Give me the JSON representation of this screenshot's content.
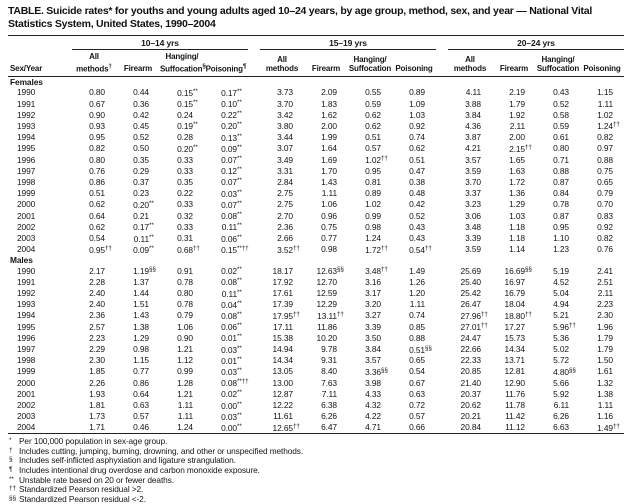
{
  "title": "TABLE. Suicide rates* for youths and young adults aged 10–24 years, by age group, method, sex, and year — National Vital Statistics System, United States, 1990–2004",
  "table": {
    "row_header": "Sex/Year",
    "groups": [
      {
        "label": "10–14 yrs",
        "columns": [
          "All\nmethods†",
          "Firearm",
          "Hanging/\nSuffocation§",
          "Poisoning¶"
        ]
      },
      {
        "label": "15–19 yrs",
        "columns": [
          "All\nmethods",
          "Firearm",
          "Hanging/\nSuffocation",
          "Poisoning"
        ]
      },
      {
        "label": "20–24 yrs",
        "columns": [
          "All\nmethods",
          "Firearm",
          "Hanging/\nSuffocation",
          "Poisoning"
        ]
      }
    ],
    "sections": [
      {
        "label": "Females",
        "rows": [
          {
            "year": "1990",
            "values": [
              "0.80",
              "0.44",
              "0.15**",
              "0.17**",
              "3.73",
              "2.09",
              "0.55",
              "0.89",
              "4.11",
              "2.19",
              "0.43",
              "1.15"
            ]
          },
          {
            "year": "1991",
            "values": [
              "0.67",
              "0.36",
              "0.15**",
              "0.10**",
              "3.70",
              "1.83",
              "0.59",
              "1.09",
              "3.88",
              "1.79",
              "0.52",
              "1.11"
            ]
          },
          {
            "year": "1992",
            "values": [
              "0.90",
              "0.42",
              "0.24",
              "0.22**",
              "3.42",
              "1.62",
              "0.62",
              "1.03",
              "3.84",
              "1.92",
              "0.58",
              "1.02"
            ]
          },
          {
            "year": "1993",
            "values": [
              "0.93",
              "0.45",
              "0.19**",
              "0.20**",
              "3.80",
              "2.00",
              "0.62",
              "0.92",
              "4.36",
              "2.11",
              "0.59",
              "1.24††"
            ]
          },
          {
            "year": "1994",
            "values": [
              "0.95",
              "0.52",
              "0.28",
              "0.13**",
              "3.44",
              "1.99",
              "0.51",
              "0.74",
              "3.87",
              "2.00",
              "0.61",
              "0.82"
            ]
          },
          {
            "year": "1995",
            "values": [
              "0.82",
              "0.50",
              "0.20**",
              "0.09**",
              "3.07",
              "1.64",
              "0.57",
              "0.62",
              "4.21",
              "2.15††",
              "0.80",
              "0.97"
            ]
          },
          {
            "year": "1996",
            "values": [
              "0.80",
              "0.35",
              "0.33",
              "0.07**",
              "3.49",
              "1.69",
              "1.02††",
              "0.51",
              "3.57",
              "1.65",
              "0.71",
              "0.88"
            ]
          },
          {
            "year": "1997",
            "values": [
              "0.76",
              "0.29",
              "0.33",
              "0.12**",
              "3.31",
              "1.70",
              "0.95",
              "0.47",
              "3.59",
              "1.63",
              "0.88",
              "0.75"
            ]
          },
          {
            "year": "1998",
            "values": [
              "0.86",
              "0.37",
              "0.35",
              "0.07**",
              "2.84",
              "1.43",
              "0.81",
              "0.38",
              "3.70",
              "1.72",
              "0.87",
              "0.65"
            ]
          },
          {
            "year": "1999",
            "values": [
              "0.51",
              "0.23",
              "0.22",
              "0.03**",
              "2.75",
              "1.11",
              "0.89",
              "0.48",
              "3.37",
              "1.36",
              "0.84",
              "0.79"
            ]
          },
          {
            "year": "2000",
            "values": [
              "0.62",
              "0.20**",
              "0.33",
              "0.07**",
              "2.75",
              "1.06",
              "1.02",
              "0.42",
              "3.23",
              "1.29",
              "0.78",
              "0.70"
            ]
          },
          {
            "year": "2001",
            "values": [
              "0.64",
              "0.21",
              "0.32",
              "0.08**",
              "2.70",
              "0.96",
              "0.99",
              "0.52",
              "3.06",
              "1.03",
              "0.87",
              "0.83"
            ]
          },
          {
            "year": "2002",
            "values": [
              "0.62",
              "0.17**",
              "0.33",
              "0.11**",
              "2.36",
              "0.75",
              "0.98",
              "0.43",
              "3.48",
              "1.18",
              "0.95",
              "0.92"
            ]
          },
          {
            "year": "2003",
            "values": [
              "0.54",
              "0.11**",
              "0.31",
              "0.06**",
              "2.66",
              "0.77",
              "1.24",
              "0.43",
              "3.39",
              "1.18",
              "1.10",
              "0.82"
            ]
          },
          {
            "year": "2004",
            "values": [
              "0.95††",
              "0.09**",
              "0.68††",
              "0.15**††",
              "3.52††",
              "0.98",
              "1.72††",
              "0.54††",
              "3.59",
              "1.14",
              "1.23",
              "0.76"
            ]
          }
        ]
      },
      {
        "label": "Males",
        "rows": [
          {
            "year": "1990",
            "values": [
              "2.17",
              "1.19§§",
              "0.91",
              "0.02**",
              "18.17",
              "12.63§§",
              "3.48††",
              "1.49",
              "25.69",
              "16.69§§",
              "5.19",
              "2.41"
            ]
          },
          {
            "year": "1991",
            "values": [
              "2.28",
              "1.37",
              "0.78",
              "0.08**",
              "17.92",
              "12.70",
              "3.16",
              "1.26",
              "25.40",
              "16.97",
              "4.52",
              "2.51"
            ]
          },
          {
            "year": "1992",
            "values": [
              "2.40",
              "1.44",
              "0.80",
              "0.11**",
              "17.61",
              "12.59",
              "3.17",
              "1.20",
              "25.42",
              "16.79",
              "5.04",
              "2.11"
            ]
          },
          {
            "year": "1993",
            "values": [
              "2.40",
              "1.51",
              "0.78",
              "0.04**",
              "17.39",
              "12.29",
              "3.20",
              "1.11",
              "26.47",
              "18.04",
              "4.94",
              "2.23"
            ]
          },
          {
            "year": "1994",
            "values": [
              "2.36",
              "1.43",
              "0.79",
              "0.08**",
              "17.95††",
              "13.11††",
              "3.27",
              "0.74",
              "27.96††",
              "18.80††",
              "5.21",
              "2.30"
            ]
          },
          {
            "year": "1995",
            "values": [
              "2.57",
              "1.38",
              "1.06",
              "0.06**",
              "17.11",
              "11.86",
              "3.39",
              "0.85",
              "27.01††",
              "17.27",
              "5.96††",
              "1.96"
            ]
          },
          {
            "year": "1996",
            "values": [
              "2.23",
              "1.29",
              "0.90",
              "0.01**",
              "15.38",
              "10.20",
              "3.50",
              "0.88",
              "24.47",
              "15.73",
              "5.36",
              "1.79"
            ]
          },
          {
            "year": "1997",
            "values": [
              "2.29",
              "0.98",
              "1.21",
              "0.03**",
              "14.94",
              "9.78",
              "3.84",
              "0.51§§",
              "22.66",
              "14.34",
              "5.02",
              "1.79"
            ]
          },
          {
            "year": "1998",
            "values": [
              "2.30",
              "1.15",
              "1.12",
              "0.01**",
              "14.34",
              "9.31",
              "3.57",
              "0.65",
              "22.33",
              "13.71",
              "5.72",
              "1.50"
            ]
          },
          {
            "year": "1999",
            "values": [
              "1.85",
              "0.77",
              "0.99",
              "0.03**",
              "13.05",
              "8.40",
              "3.36§§",
              "0.54",
              "20.85",
              "12.81",
              "4.80§§",
              "1.61"
            ]
          },
          {
            "year": "2000",
            "values": [
              "2.26",
              "0.86",
              "1.28",
              "0.08**††",
              "13.00",
              "7.63",
              "3.98",
              "0.67",
              "21.40",
              "12.90",
              "5.66",
              "1.32"
            ]
          },
          {
            "year": "2001",
            "values": [
              "1.93",
              "0.64",
              "1.21",
              "0.02**",
              "12.87",
              "7.11",
              "4.33",
              "0.63",
              "20.37",
              "11.76",
              "5.92",
              "1.38"
            ]
          },
          {
            "year": "2002",
            "values": [
              "1.81",
              "0.63",
              "1.11",
              "0.00**",
              "12.22",
              "6.38",
              "4.32",
              "0.72",
              "20.62",
              "11.78",
              "6.11",
              "1.11"
            ]
          },
          {
            "year": "2003",
            "values": [
              "1.73",
              "0.57",
              "1.11",
              "0.03**",
              "11.61",
              "6.26",
              "4.22",
              "0.57",
              "20.21",
              "11.42",
              "6.26",
              "1.16"
            ]
          },
          {
            "year": "2004",
            "values": [
              "1.71",
              "0.46",
              "1.24",
              "0.00**",
              "12.65††",
              "6.47",
              "4.71",
              "0.66",
              "20.84",
              "11.12",
              "6.63",
              "1.49††"
            ]
          }
        ]
      }
    ]
  },
  "footnotes": [
    {
      "marker": "*",
      "text": "Per 100,000 population in sex-age group."
    },
    {
      "marker": "†",
      "text": "Includes cutting, jumping, burning, drowning, and other or unspecified methods."
    },
    {
      "marker": "§",
      "text": "Includes self-inflicted asphyxiation and ligature strangulation."
    },
    {
      "marker": "¶",
      "text": "Includes intentional drug overdose and carbon monoxide exposure."
    },
    {
      "marker": "**",
      "text": "Unstable rate based on 20 or fewer deaths."
    },
    {
      "marker": "††",
      "text": "Standardized Pearson residual >2."
    },
    {
      "marker": "§§",
      "text": "Standardized Pearson residual <-2."
    }
  ]
}
